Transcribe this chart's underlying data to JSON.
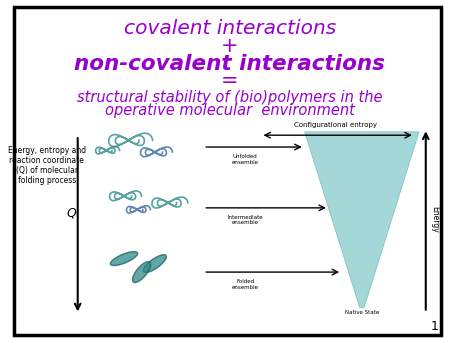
{
  "title_line1": "covalent interactions",
  "title_line2": "+",
  "title_line3": "non-covalent interactions",
  "title_line4": "=",
  "title_line5": "structural stability of (bio)polymers in the",
  "title_line6": "operative molecular  environment",
  "title_color": "#9900cc",
  "subtitle_color": "#9900cc",
  "background_color": "#ffffff",
  "border_color": "#000000",
  "slide_number": "1",
  "left_label_line1": "Energy, entropy and",
  "left_label_line2": "reaction coordinate",
  "left_label_line3": "(Q) of molecular",
  "left_label_line4": "folding process",
  "q_label": "Q",
  "config_entropy_label": "Configurational entropy",
  "energy_label": "Energy",
  "unfolded_label": "Unfolded\nensemble",
  "intermediate_label": "Intermediate\nensemble",
  "folded_label": "Folded\nensemble",
  "native_label": "Native State"
}
